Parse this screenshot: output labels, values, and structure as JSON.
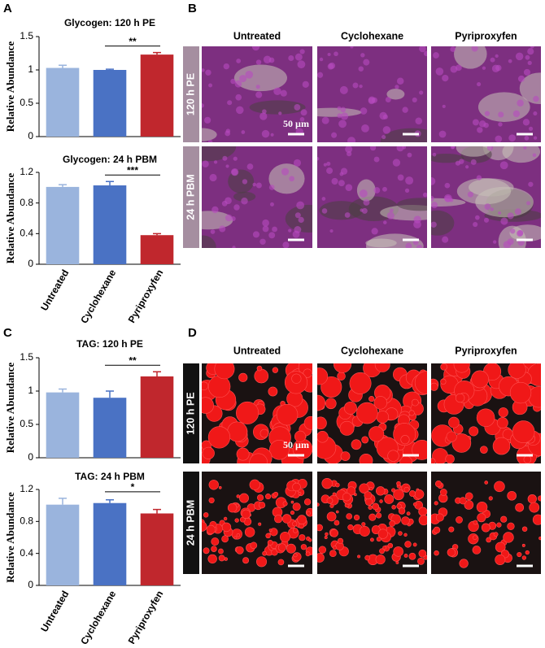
{
  "panels": [
    "A",
    "B",
    "C",
    "D"
  ],
  "chart_data": [
    {
      "type": "bar",
      "title": "Glycogen: 120 h PE",
      "y_label": "Relative Abundance",
      "categories": [
        null,
        null,
        null
      ],
      "values": [
        1.03,
        1.0,
        1.23
      ],
      "errors": [
        0.04,
        0.01,
        0.03
      ],
      "colors": [
        "#9ab4dd",
        "#4a72c4",
        "#c0272d"
      ],
      "ylim": [
        0,
        1.5
      ],
      "yticks": [
        0,
        0.5,
        1,
        1.5
      ],
      "significance": "**"
    },
    {
      "type": "bar",
      "title": "Glycogen: 24 h PBM",
      "y_label": "Relative Abundance",
      "categories": [
        "Untreated",
        "Cyclohexane",
        "Pyriproxyfen"
      ],
      "values": [
        1.01,
        1.03,
        0.38
      ],
      "errors": [
        0.03,
        0.05,
        0.02
      ],
      "colors": [
        "#9ab4dd",
        "#4a72c4",
        "#c0272d"
      ],
      "ylim": [
        0,
        1.2
      ],
      "yticks": [
        0,
        0.4,
        0.8,
        1.2
      ],
      "significance": "***"
    },
    {
      "type": "bar",
      "title": "TAG: 120 h PE",
      "y_label": "Relative Abundance",
      "categories": [
        null,
        null,
        null
      ],
      "values": [
        0.98,
        0.9,
        1.22
      ],
      "errors": [
        0.05,
        0.1,
        0.07
      ],
      "colors": [
        "#9ab4dd",
        "#4a72c4",
        "#c0272d"
      ],
      "ylim": [
        0,
        1.5
      ],
      "yticks": [
        0,
        0.5,
        1,
        1.5
      ],
      "significance": "**"
    },
    {
      "type": "bar",
      "title": "TAG: 24 h PBM",
      "y_label": "Relative Abundance",
      "categories": [
        "Untreated",
        "Cyclohexane",
        "Pyriproxyfen"
      ],
      "values": [
        1.01,
        1.03,
        0.9
      ],
      "errors": [
        0.08,
        0.04,
        0.05
      ],
      "colors": [
        "#9ab4dd",
        "#4a72c4",
        "#c0272d"
      ],
      "ylim": [
        0,
        1.2
      ],
      "yticks": [
        0,
        0.4,
        0.8,
        1.2
      ],
      "significance": "*"
    }
  ],
  "image_grids": [
    {
      "columns": [
        "Untreated",
        "Cyclohexane",
        "Pyriproxyfen"
      ],
      "rows": [
        "120 h PE",
        "24 h PBM"
      ],
      "scale_label": "50 µm"
    },
    {
      "columns": [
        "Untreated",
        "Cyclohexane",
        "Pyriproxyfen"
      ],
      "rows": [
        "120 h PE",
        "24 h PBM"
      ],
      "scale_label": "50 µm"
    }
  ]
}
